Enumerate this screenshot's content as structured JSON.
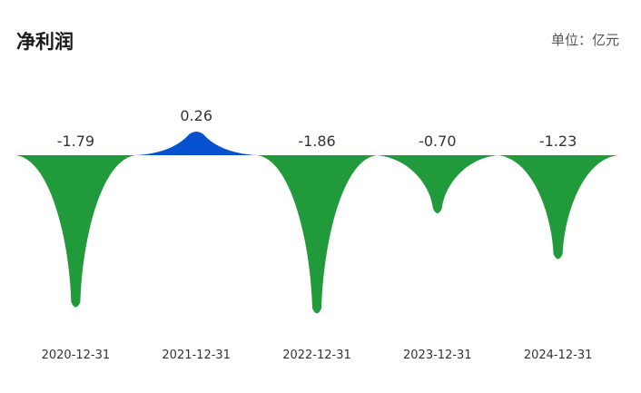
{
  "header": {
    "title": "净利润",
    "unit": "单位：亿元"
  },
  "colors": {
    "negative": "#219a3b",
    "positive": "#0751d1",
    "text": "#333333"
  },
  "chart_data": {
    "type": "area",
    "title": "净利润",
    "unit": "亿元",
    "categories": [
      "2020-12-31",
      "2021-12-31",
      "2022-12-31",
      "2023-12-31",
      "2024-12-31"
    ],
    "values": [
      -1.79,
      0.26,
      -1.86,
      -0.7,
      -1.23
    ],
    "labels": [
      "-1.79",
      "0.26",
      "-1.86",
      "-0.70",
      "-1.23"
    ],
    "baseline": 0
  }
}
